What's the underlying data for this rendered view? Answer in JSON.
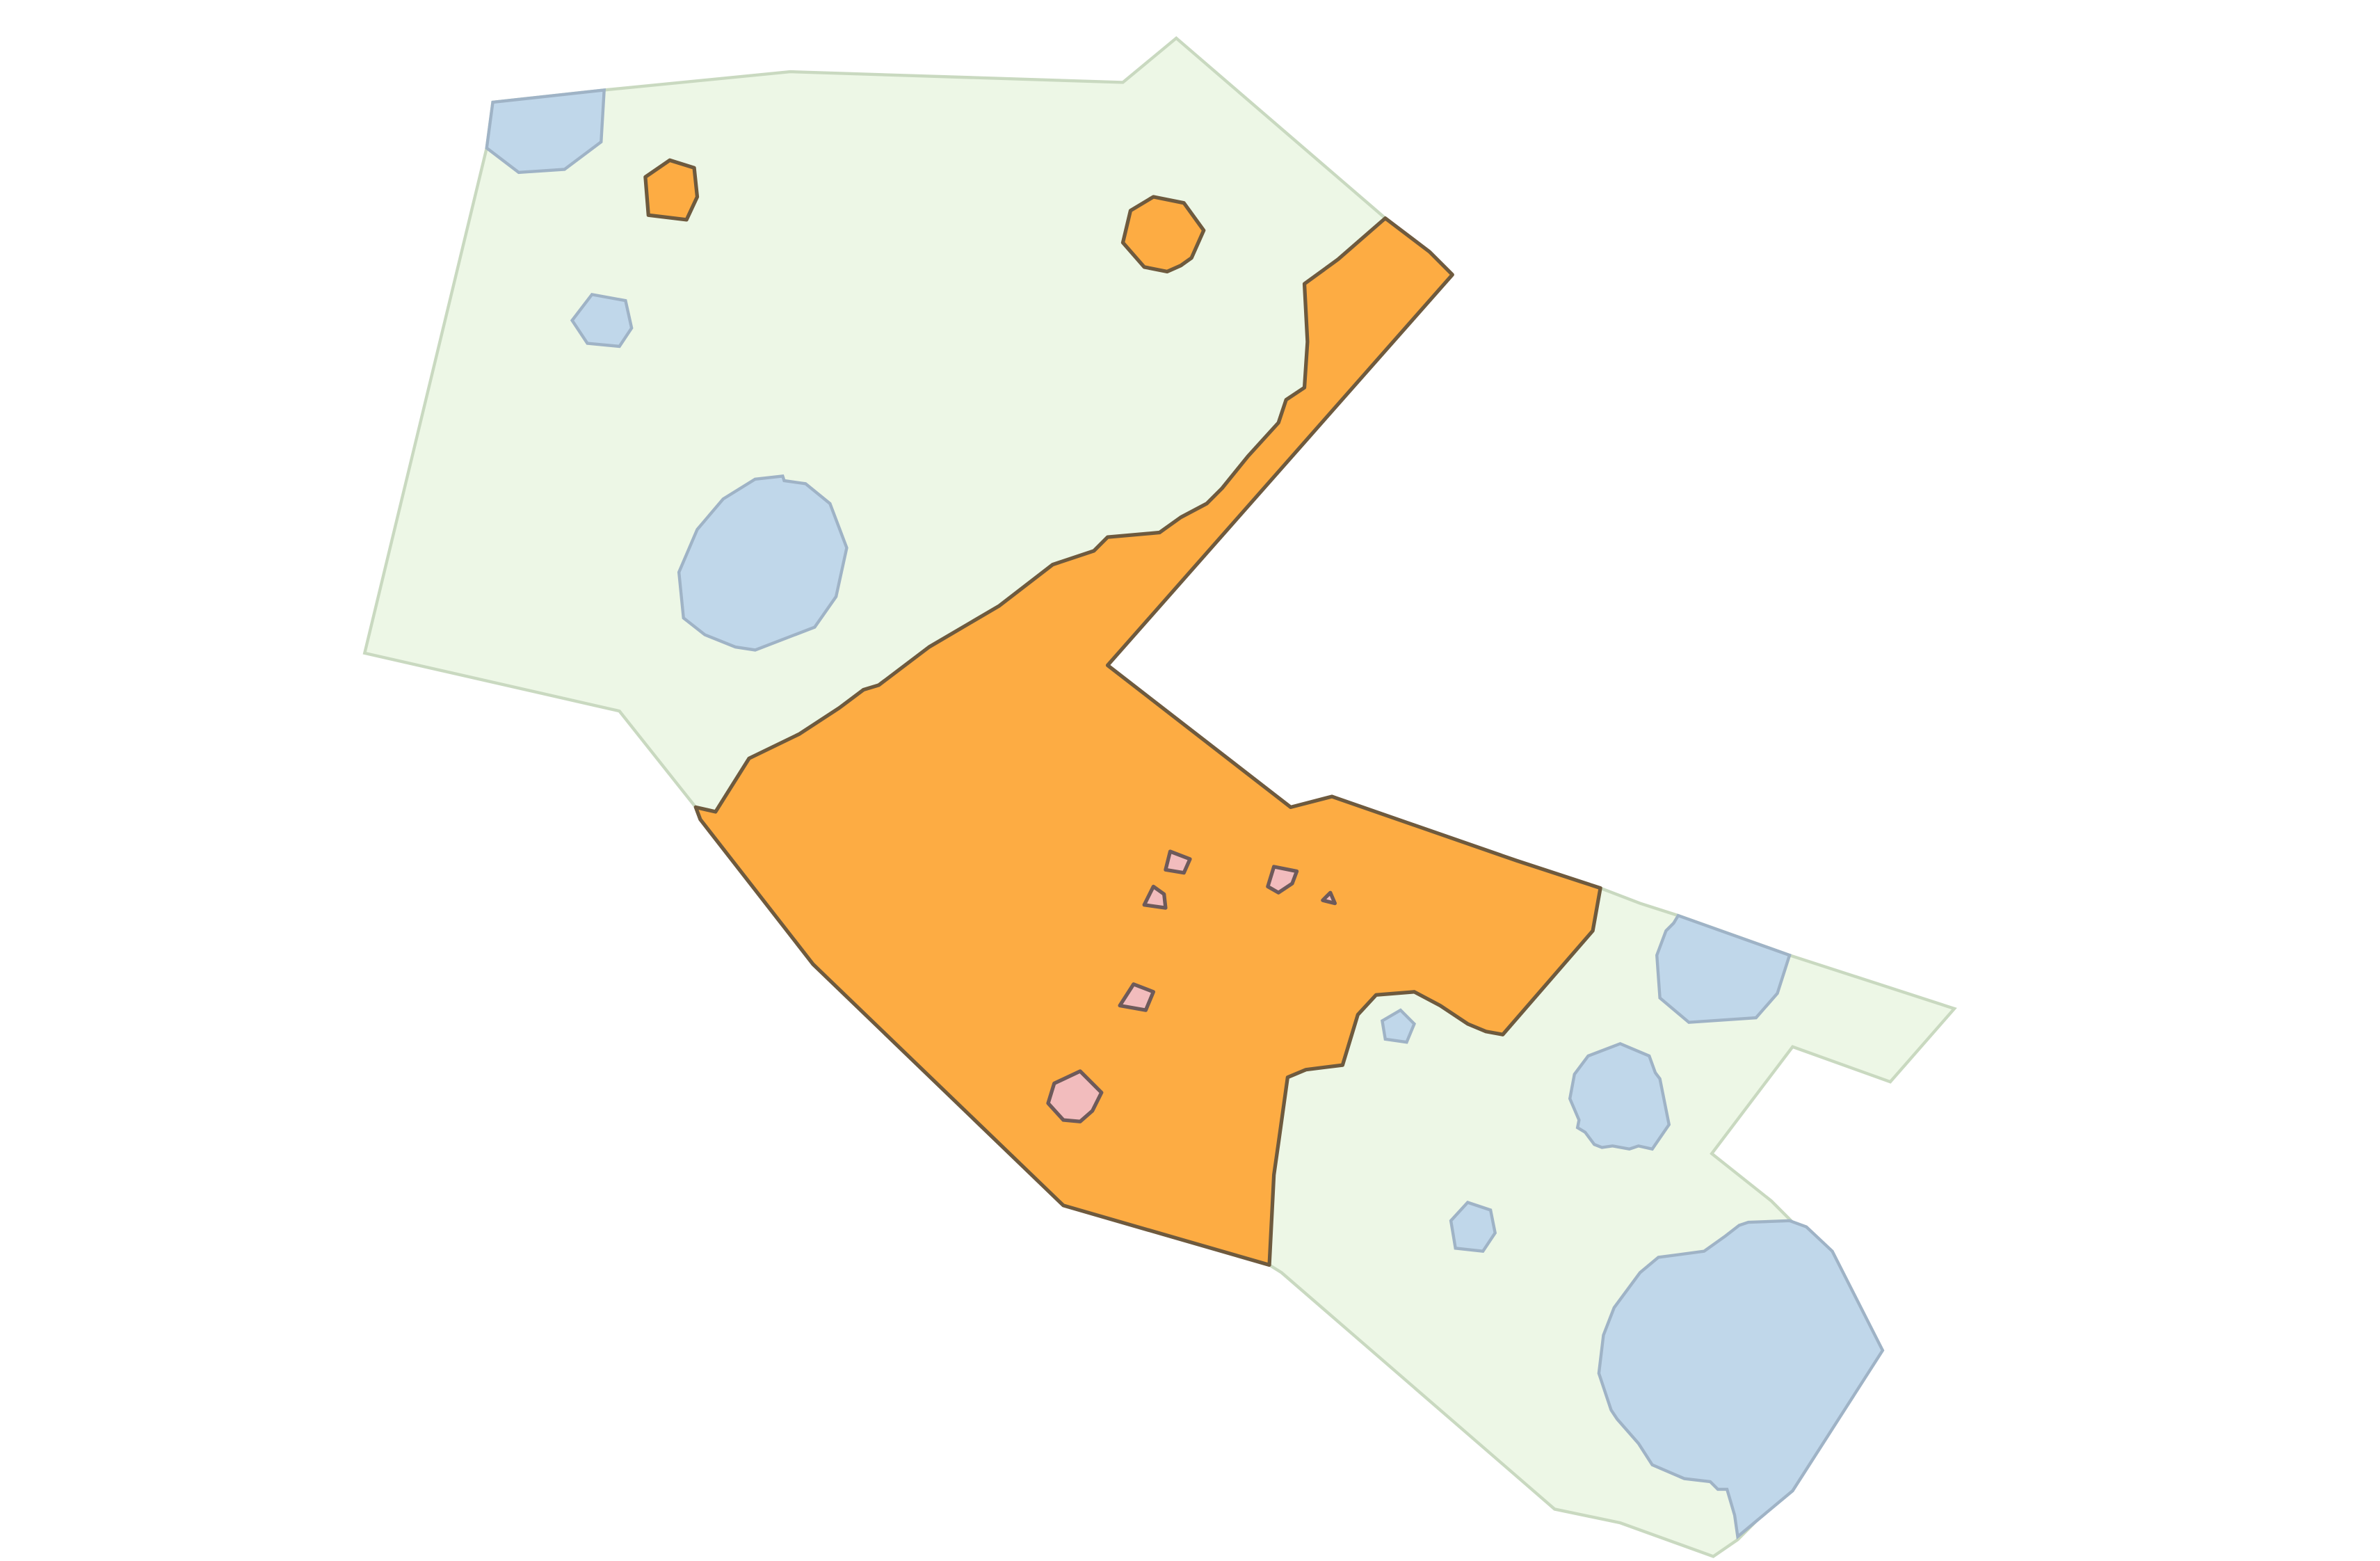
{
  "map": {
    "colors": {
      "background": "#ffffff",
      "green_zone": "#edf7e6",
      "water": "#c0d7ea",
      "orange_zone": "#fdac43",
      "pink_parcel": "#f2bcbd"
    },
    "layers": [
      "green-zone",
      "water-body",
      "orange-zone",
      "pink-parcel"
    ]
  }
}
